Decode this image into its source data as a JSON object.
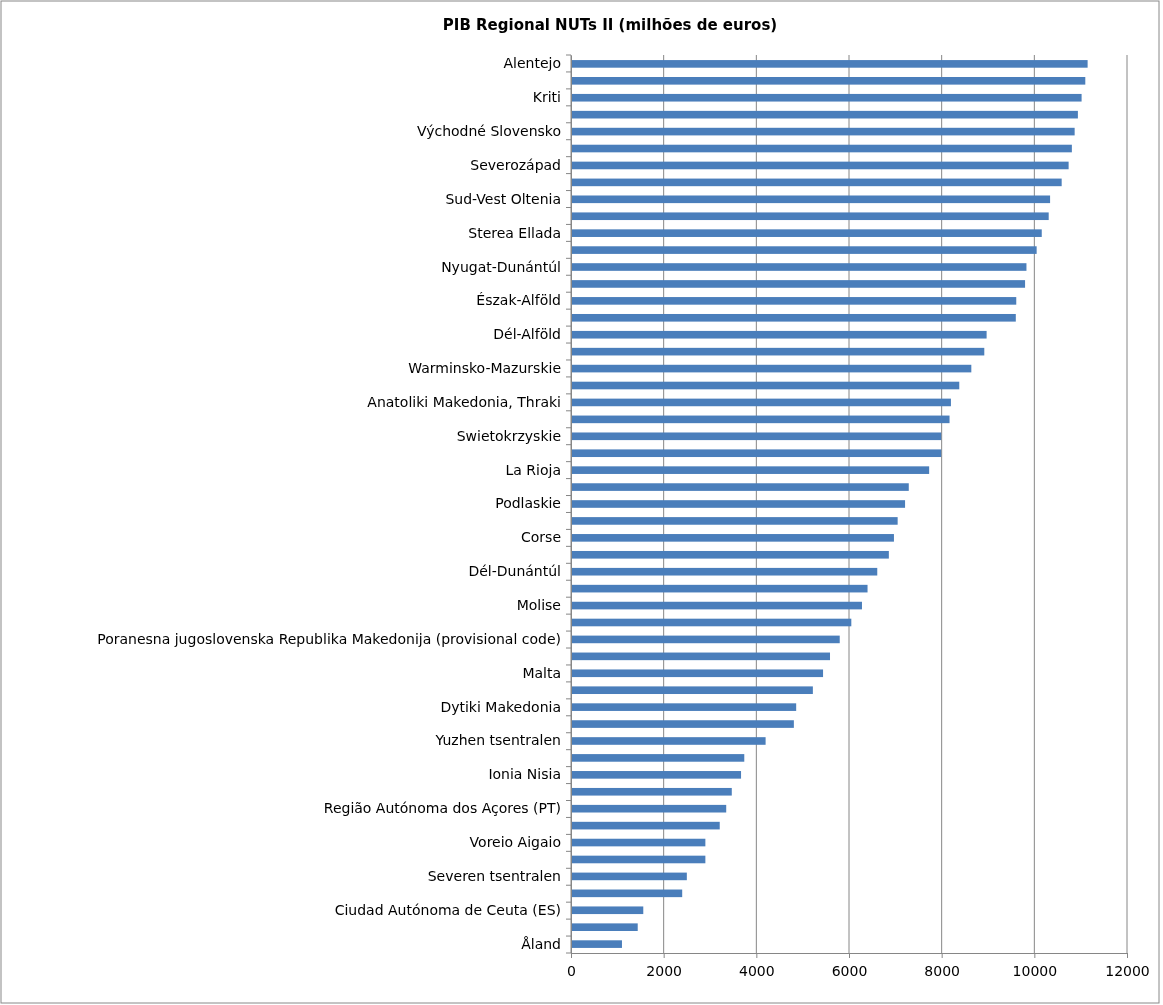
{
  "chart_data": {
    "type": "bar",
    "orientation": "horizontal",
    "title": "PIB Regional  NUTs II (milhões de euros)",
    "categories": [
      "Alentejo",
      null,
      "Kriti",
      null,
      "Východné Slovensko",
      null,
      "Severozápad",
      null,
      "Sud-Vest Oltenia",
      null,
      "Sterea Ellada",
      null,
      "Nyugat-Dunántúl",
      null,
      "Észak-Alföld",
      null,
      "Dél-Alföld",
      null,
      "Warminsko-Mazurskie",
      null,
      "Anatoliki Makedonia, Thraki",
      null,
      "Swietokrzyskie",
      null,
      "La Rioja",
      null,
      "Podlaskie",
      null,
      "Corse",
      null,
      "Dél-Dunántúl",
      null,
      "Molise",
      null,
      "Poranesna jugoslovenska Republika Makedonija (provisional code)",
      null,
      "Malta",
      null,
      "Dytiki Makedonia",
      null,
      "Yuzhen tsentralen",
      null,
      "Ionia Nisia",
      null,
      "Região Autónoma dos Açores (PT)",
      null,
      "Voreio Aigaio",
      null,
      "Severen tsentralen",
      null,
      "Ciudad Autónoma de Ceuta (ES)",
      null,
      "Åland"
    ],
    "values": [
      11150,
      11100,
      11020,
      10940,
      10870,
      10810,
      10740,
      10590,
      10340,
      10310,
      10160,
      10050,
      9830,
      9800,
      9610,
      9600,
      8970,
      8920,
      8640,
      8380,
      8200,
      8170,
      7990,
      7990,
      7730,
      7290,
      7210,
      7050,
      6970,
      6860,
      6610,
      6400,
      6280,
      6050,
      5800,
      5590,
      5440,
      5220,
      4860,
      4810,
      4200,
      3740,
      3670,
      3470,
      3350,
      3210,
      2900,
      2900,
      2500,
      2400,
      1560,
      1440,
      1100
    ],
    "color": "#4a7ebb",
    "xlim": [
      0,
      12000
    ],
    "xticks": [
      0,
      2000,
      4000,
      6000,
      8000,
      10000,
      12000
    ],
    "grid": "x"
  }
}
